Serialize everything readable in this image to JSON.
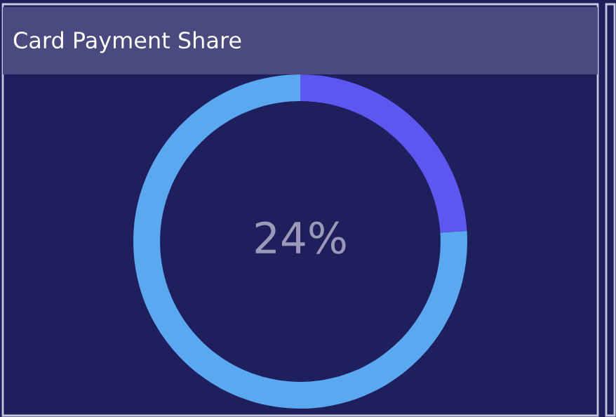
{
  "chart_data": {
    "type": "donut",
    "title": "Card Payment Share",
    "categories": [
      null,
      null
    ],
    "values": [
      24,
      76
    ],
    "colors": [
      "#5b57f0",
      "#5aa9f0"
    ],
    "annotations": [
      "24%"
    ]
  }
}
